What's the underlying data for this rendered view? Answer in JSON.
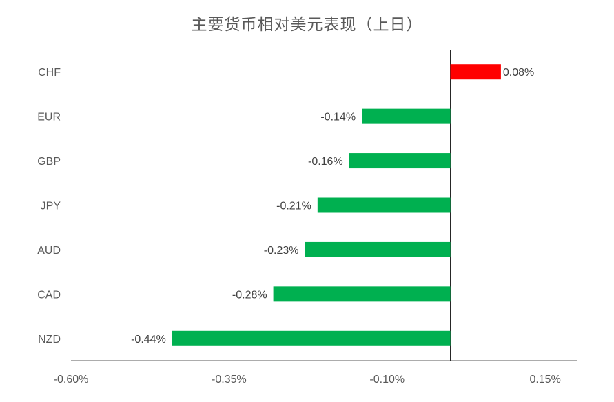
{
  "chart_data": {
    "type": "bar",
    "orientation": "horizontal",
    "title": "主要货币相对美元表现（上日）",
    "categories": [
      "CHF",
      "EUR",
      "GBP",
      "JPY",
      "AUD",
      "CAD",
      "NZD"
    ],
    "values": [
      0.08,
      -0.14,
      -0.16,
      -0.21,
      -0.23,
      -0.28,
      -0.44
    ],
    "data_labels": [
      "0.08%",
      "-0.14%",
      "-0.16%",
      "-0.21%",
      "-0.23%",
      "-0.28%",
      "-0.44%"
    ],
    "bar_colors": [
      "#FF0000",
      "#00B050",
      "#00B050",
      "#00B050",
      "#00B050",
      "#00B050",
      "#00B050"
    ],
    "xlim": [
      -0.6,
      0.2
    ],
    "x_ticks": [
      -0.6,
      -0.35,
      -0.1,
      0.15
    ],
    "x_tick_labels": [
      "-0.60%",
      "-0.35%",
      "-0.10%",
      "0.15%"
    ],
    "xlabel": "",
    "ylabel": "",
    "grid": false,
    "legend": "none"
  }
}
